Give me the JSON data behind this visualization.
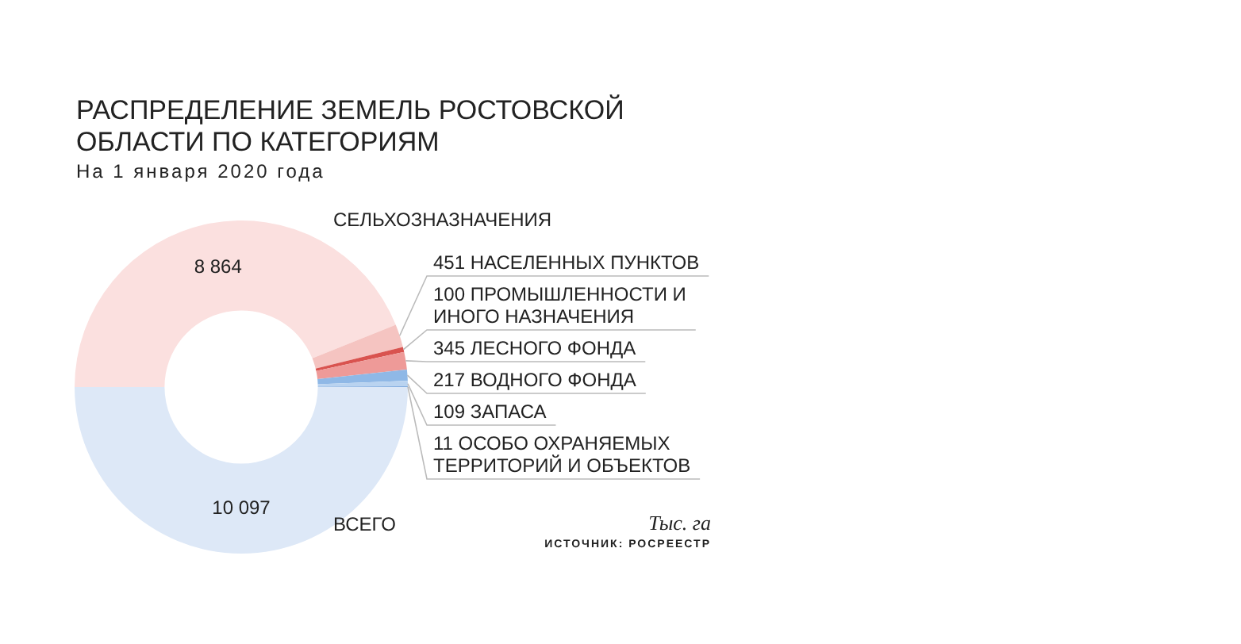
{
  "chart_data": {
    "type": "donut",
    "title": "РАСПРЕДЕЛЕНИЕ ЗЕМЕЛЬ РОСТОВСКОЙ ОБЛАСТИ ПО КАТЕГОРИЯМ",
    "subtitle": "На 1 января 2020 года",
    "categories": [
      "СЕЛЬХОЗНАЗНАЧЕНИЯ",
      "НАСЕЛЕННЫХ ПУНКТОВ",
      "ПРОМЫШЛЕННОСТИ И ИНОГО НАЗНАЧЕНИЯ",
      "ЛЕСНОГО ФОНДА",
      "ВОДНОГО ФОНДА",
      "ЗАПАСА",
      "ОСОБО ОХРАНЯЕМЫХ ТЕРРИТОРИЙ И ОБЪЕКТОВ",
      "ВСЕГО"
    ],
    "values": [
      8864,
      451,
      100,
      345,
      217,
      109,
      11,
      10097
    ],
    "value_labels": [
      "8 864",
      "451",
      "100",
      "345",
      "217",
      "109",
      "11",
      "10 097"
    ],
    "colors": [
      "#fbe0df",
      "#f5c4c1",
      "#d9534f",
      "#ee9a98",
      "#8fb8e6",
      "#b9d3f0",
      "#5f95d6",
      "#dde8f7"
    ],
    "annotations": [
      "Тыс. га",
      "ИСТОЧНИК: РОСРЕЕСТР"
    ],
    "legend": false
  }
}
